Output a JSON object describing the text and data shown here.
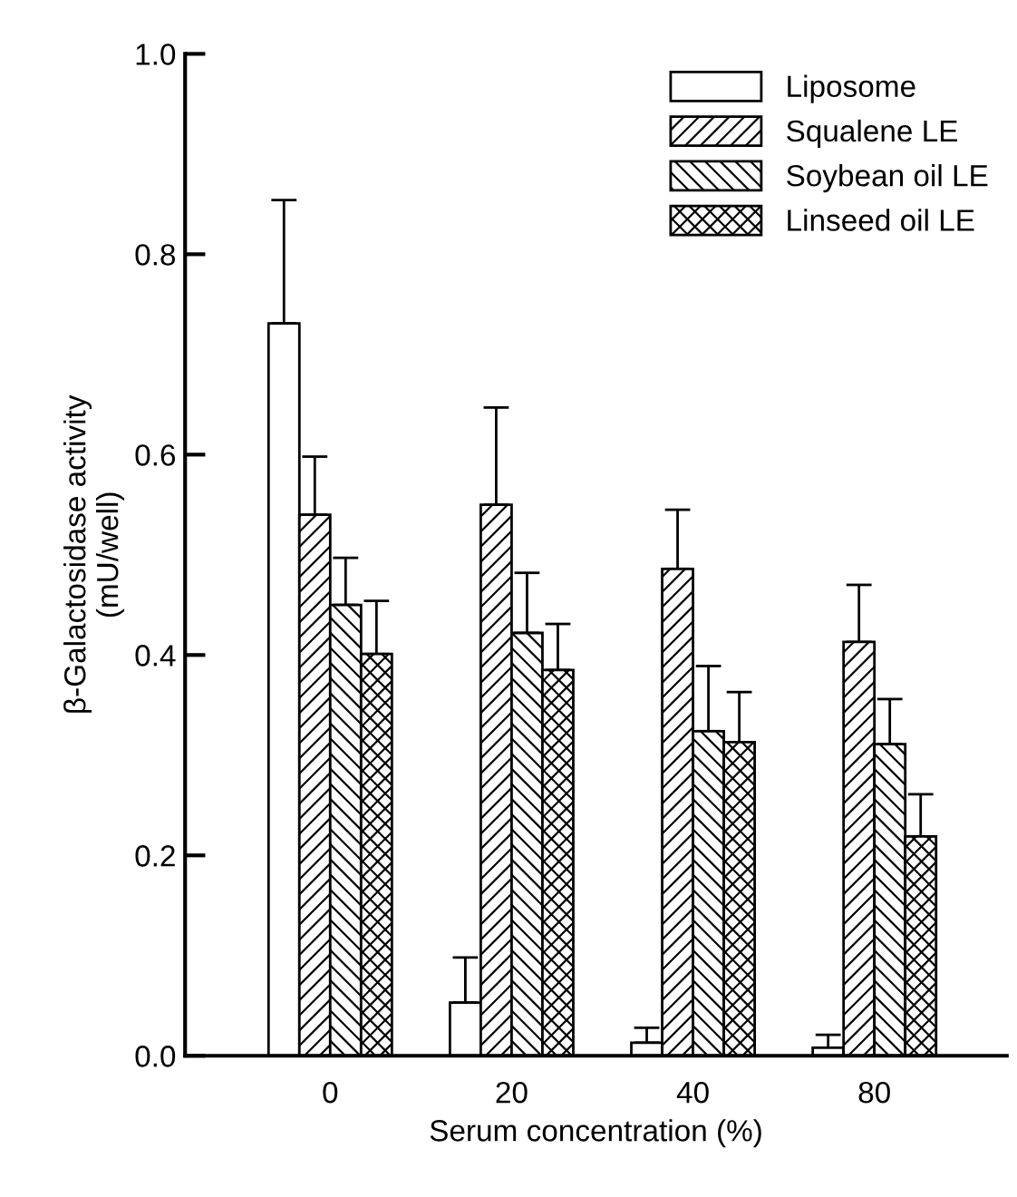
{
  "chart_data": {
    "type": "bar",
    "xlabel": "Serum concentration (%)",
    "ylabel": "β-Galactosidase activity\n(mU/well)",
    "categories": [
      "0",
      "20",
      "40",
      "80"
    ],
    "series": [
      {
        "name": "Liposome",
        "color": "#ffffff",
        "values": [
          0.731,
          0.053,
          0.013,
          0.008
        ],
        "errors": [
          [
            0.731,
            0.854
          ],
          [
            0.053,
            0.098
          ],
          [
            0.013,
            0.028
          ],
          [
            0.008,
            0.021
          ]
        ]
      },
      {
        "name": "Squalene LE",
        "color": "#000000",
        "values": [
          0.54,
          0.55,
          0.486,
          0.413
        ],
        "errors": [
          [
            0.54,
            0.598
          ],
          [
            0.55,
            0.647
          ],
          [
            0.486,
            0.545
          ],
          [
            0.413,
            0.47
          ]
        ]
      },
      {
        "name": "Soybean oil LE",
        "color": "#000000",
        "values": [
          0.45,
          0.422,
          0.324,
          0.311
        ],
        "errors": [
          [
            0.45,
            0.497
          ],
          [
            0.422,
            0.482
          ],
          [
            0.324,
            0.389
          ],
          [
            0.311,
            0.356
          ]
        ]
      },
      {
        "name": "Linseed oil LE",
        "color": "#000000",
        "values": [
          0.401,
          0.385,
          0.313,
          0.219
        ],
        "errors": [
          [
            0.401,
            0.454
          ],
          [
            0.385,
            0.431
          ],
          [
            0.313,
            0.363
          ],
          [
            0.219,
            0.261
          ]
        ]
      }
    ],
    "ylim": [
      0,
      1.0
    ],
    "yticks": [
      {
        "value": 0,
        "label": "0.0"
      },
      {
        "value": 0.2,
        "label": "0.2"
      },
      {
        "value": 0.4,
        "label": "0.4"
      },
      {
        "value": 0.6,
        "label": "0.6"
      },
      {
        "value": 0.8,
        "label": "0.8"
      },
      {
        "value": 1.0,
        "label": "1.0"
      }
    ],
    "legend": "top right"
  }
}
